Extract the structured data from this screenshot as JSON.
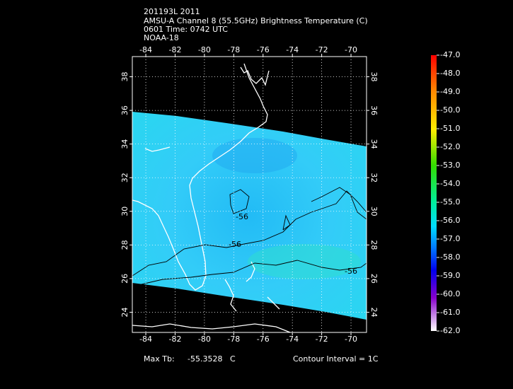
{
  "header": {
    "lines": [
      "201193L 2011",
      "AMSU-A Channel 8 (55.5GHz) Brightness Temperature (C)",
      "0601 Time: 0742 UTC",
      "NOAA-18"
    ]
  },
  "map": {
    "lon_lim": [
      -84.92,
      -68.94
    ],
    "lat_lim": [
      22.8,
      39.2
    ],
    "lon_ticks": [
      -84,
      -82,
      -80,
      -78,
      -76,
      -74,
      -72,
      -70
    ],
    "lat_ticks": [
      24,
      26,
      28,
      30,
      32,
      34,
      36,
      38
    ],
    "contour_labels": [
      -56,
      -56,
      -56
    ]
  },
  "colorbar": {
    "ticks": [
      {
        "value": -47,
        "label": "-47.0"
      },
      {
        "value": -48,
        "label": "-48.0"
      },
      {
        "value": -49,
        "label": "-49.0"
      },
      {
        "value": -50,
        "label": "-50.0"
      },
      {
        "value": -51,
        "label": "-51.0"
      },
      {
        "value": -52,
        "label": "-52.0"
      },
      {
        "value": -53,
        "label": "-53.0"
      },
      {
        "value": -54,
        "label": "-54.0"
      },
      {
        "value": -55,
        "label": "-55.0"
      },
      {
        "value": -56,
        "label": "-56.0"
      },
      {
        "value": -57,
        "label": "-57.0"
      },
      {
        "value": -58,
        "label": "-58.0"
      },
      {
        "value": -59,
        "label": "-59.0"
      },
      {
        "value": -60,
        "label": "-60.0"
      },
      {
        "value": -61,
        "label": "-61.0"
      },
      {
        "value": -62,
        "label": "-62.0"
      }
    ]
  },
  "footer": {
    "max_label": "Max Tb:",
    "max_value": "-55.3528",
    "max_unit": "C",
    "contour_interval": "Contour Interval = 1C"
  }
}
